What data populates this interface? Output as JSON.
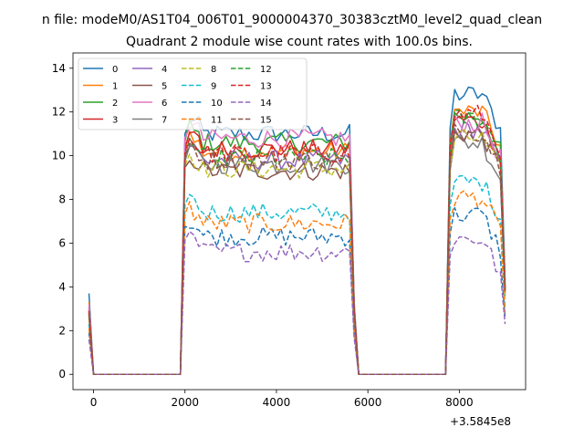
{
  "figure": {
    "suptitle": "n file: modeM0/AS1T04_006T01_9000004370_30383cztM0_level2_quad_clean",
    "title": "Quadrant 2 module wise count rates with 100.0s bins.",
    "offset_label": "+3.5845e8"
  },
  "chart_data": {
    "type": "line",
    "title": "Quadrant 2 module wise count rates with 100.0s bins.",
    "xlabel": "",
    "ylabel": "",
    "x_offset": "+3.5845e8",
    "xlim": [
      -450,
      9450
    ],
    "ylim": [
      -0.7,
      14.7
    ],
    "xticks": [
      0,
      2000,
      4000,
      6000,
      8000
    ],
    "yticks": [
      0,
      2,
      4,
      6,
      8,
      10,
      12,
      14
    ],
    "grid": false,
    "legend_position": "top-left",
    "legend_columns": 4,
    "segments": [
      {
        "start": -100,
        "end": 0,
        "points": 2
      },
      {
        "start": 0,
        "end": 1900,
        "points": 20
      },
      {
        "start": 1900,
        "end": 5700,
        "points": 39
      },
      {
        "start": 5700,
        "end": 7700,
        "points": 21
      },
      {
        "start": 7700,
        "end": 9000,
        "points": 14
      }
    ],
    "series": [
      {
        "name": "0",
        "color": "#1f77b4",
        "dash": "solid",
        "start_value": 3.7,
        "plateau1": 11.0,
        "plateau2": 12.8,
        "end_value": 4.3
      },
      {
        "name": "1",
        "color": "#ff7f0e",
        "dash": "solid",
        "start_value": 3.3,
        "plateau1": 10.2,
        "plateau2": 12.0,
        "end_value": 4.0
      },
      {
        "name": "2",
        "color": "#2ca02c",
        "dash": "solid",
        "start_value": 3.1,
        "plateau1": 10.6,
        "plateau2": 11.8,
        "end_value": 4.1
      },
      {
        "name": "3",
        "color": "#d62728",
        "dash": "solid",
        "start_value": 3.0,
        "plateau1": 10.3,
        "plateau2": 11.6,
        "end_value": 3.9
      },
      {
        "name": "4",
        "color": "#9467bd",
        "dash": "solid",
        "start_value": 2.9,
        "plateau1": 9.8,
        "plateau2": 11.2,
        "end_value": 3.8
      },
      {
        "name": "5",
        "color": "#8c564b",
        "dash": "solid",
        "start_value": 2.8,
        "plateau1": 9.3,
        "plateau2": 11.0,
        "end_value": 3.7
      },
      {
        "name": "6",
        "color": "#e377c2",
        "dash": "solid",
        "start_value": 3.2,
        "plateau1": 10.8,
        "plateau2": 11.5,
        "end_value": 4.0
      },
      {
        "name": "7",
        "color": "#7f7f7f",
        "dash": "solid",
        "start_value": 2.7,
        "plateau1": 9.6,
        "plateau2": 10.6,
        "end_value": 3.6
      },
      {
        "name": "8",
        "color": "#bcbd22",
        "dash": "dashed",
        "start_value": 2.6,
        "plateau1": 9.4,
        "plateau2": 10.8,
        "end_value": 3.5
      },
      {
        "name": "9",
        "color": "#17becf",
        "dash": "dashed",
        "start_value": 2.3,
        "plateau1": 7.4,
        "plateau2": 8.8,
        "end_value": 3.0
      },
      {
        "name": "10",
        "color": "#1f77b4",
        "dash": "dashed",
        "start_value": 1.9,
        "plateau1": 6.3,
        "plateau2": 7.3,
        "end_value": 2.6
      },
      {
        "name": "11",
        "color": "#ff7f0e",
        "dash": "dashed",
        "start_value": 2.1,
        "plateau1": 6.9,
        "plateau2": 8.1,
        "end_value": 2.8
      },
      {
        "name": "12",
        "color": "#2ca02c",
        "dash": "dashed",
        "start_value": 2.8,
        "plateau1": 9.9,
        "plateau2": 11.7,
        "end_value": 3.9
      },
      {
        "name": "13",
        "color": "#d62728",
        "dash": "dashed",
        "start_value": 2.9,
        "plateau1": 10.1,
        "plateau2": 11.9,
        "end_value": 3.9
      },
      {
        "name": "14",
        "color": "#9467bd",
        "dash": "dashed",
        "start_value": 1.6,
        "plateau1": 5.6,
        "plateau2": 6.2,
        "end_value": 2.3
      },
      {
        "name": "15",
        "color": "#8c564b",
        "dash": "dashed",
        "start_value": 2.7,
        "plateau1": 9.8,
        "plateau2": 11.1,
        "end_value": 3.7
      }
    ]
  }
}
